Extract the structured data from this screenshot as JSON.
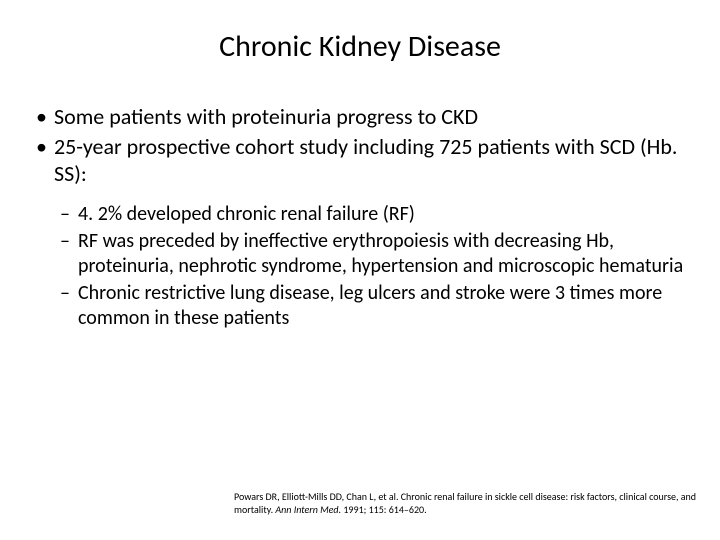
{
  "title": "Chronic Kidney Disease",
  "bullets": [
    "Some patients with proteinuria progress to CKD",
    "25-year prospective cohort study including 725 patients with SCD (Hb. SS):"
  ],
  "sub_bullets": [
    "4. 2% developed chronic renal failure (RF)",
    "RF was preceded by ineffective erythropoiesis with decreasing Hb, proteinuria, nephrotic syndrome, hypertension and microscopic hematuria",
    "Chronic restrictive lung disease, leg ulcers and stroke were 3 times more common in these patients"
  ],
  "citation": {
    "authors": "Powars DR, Elliott-Mills DD, Chan L, et al. Chronic renal failure in sickle cell disease: risk factors, clinical course, and mortality. ",
    "journal": "Ann Intern Med. ",
    "details": "1991; 115: 614–620."
  },
  "colors": {
    "background": "#ffffff",
    "text": "#000000"
  },
  "typography": {
    "title_fontsize": 30,
    "bullet_fontsize": 22,
    "sub_bullet_fontsize": 20,
    "citation_fontsize": 10,
    "font_family": "Calibri"
  }
}
